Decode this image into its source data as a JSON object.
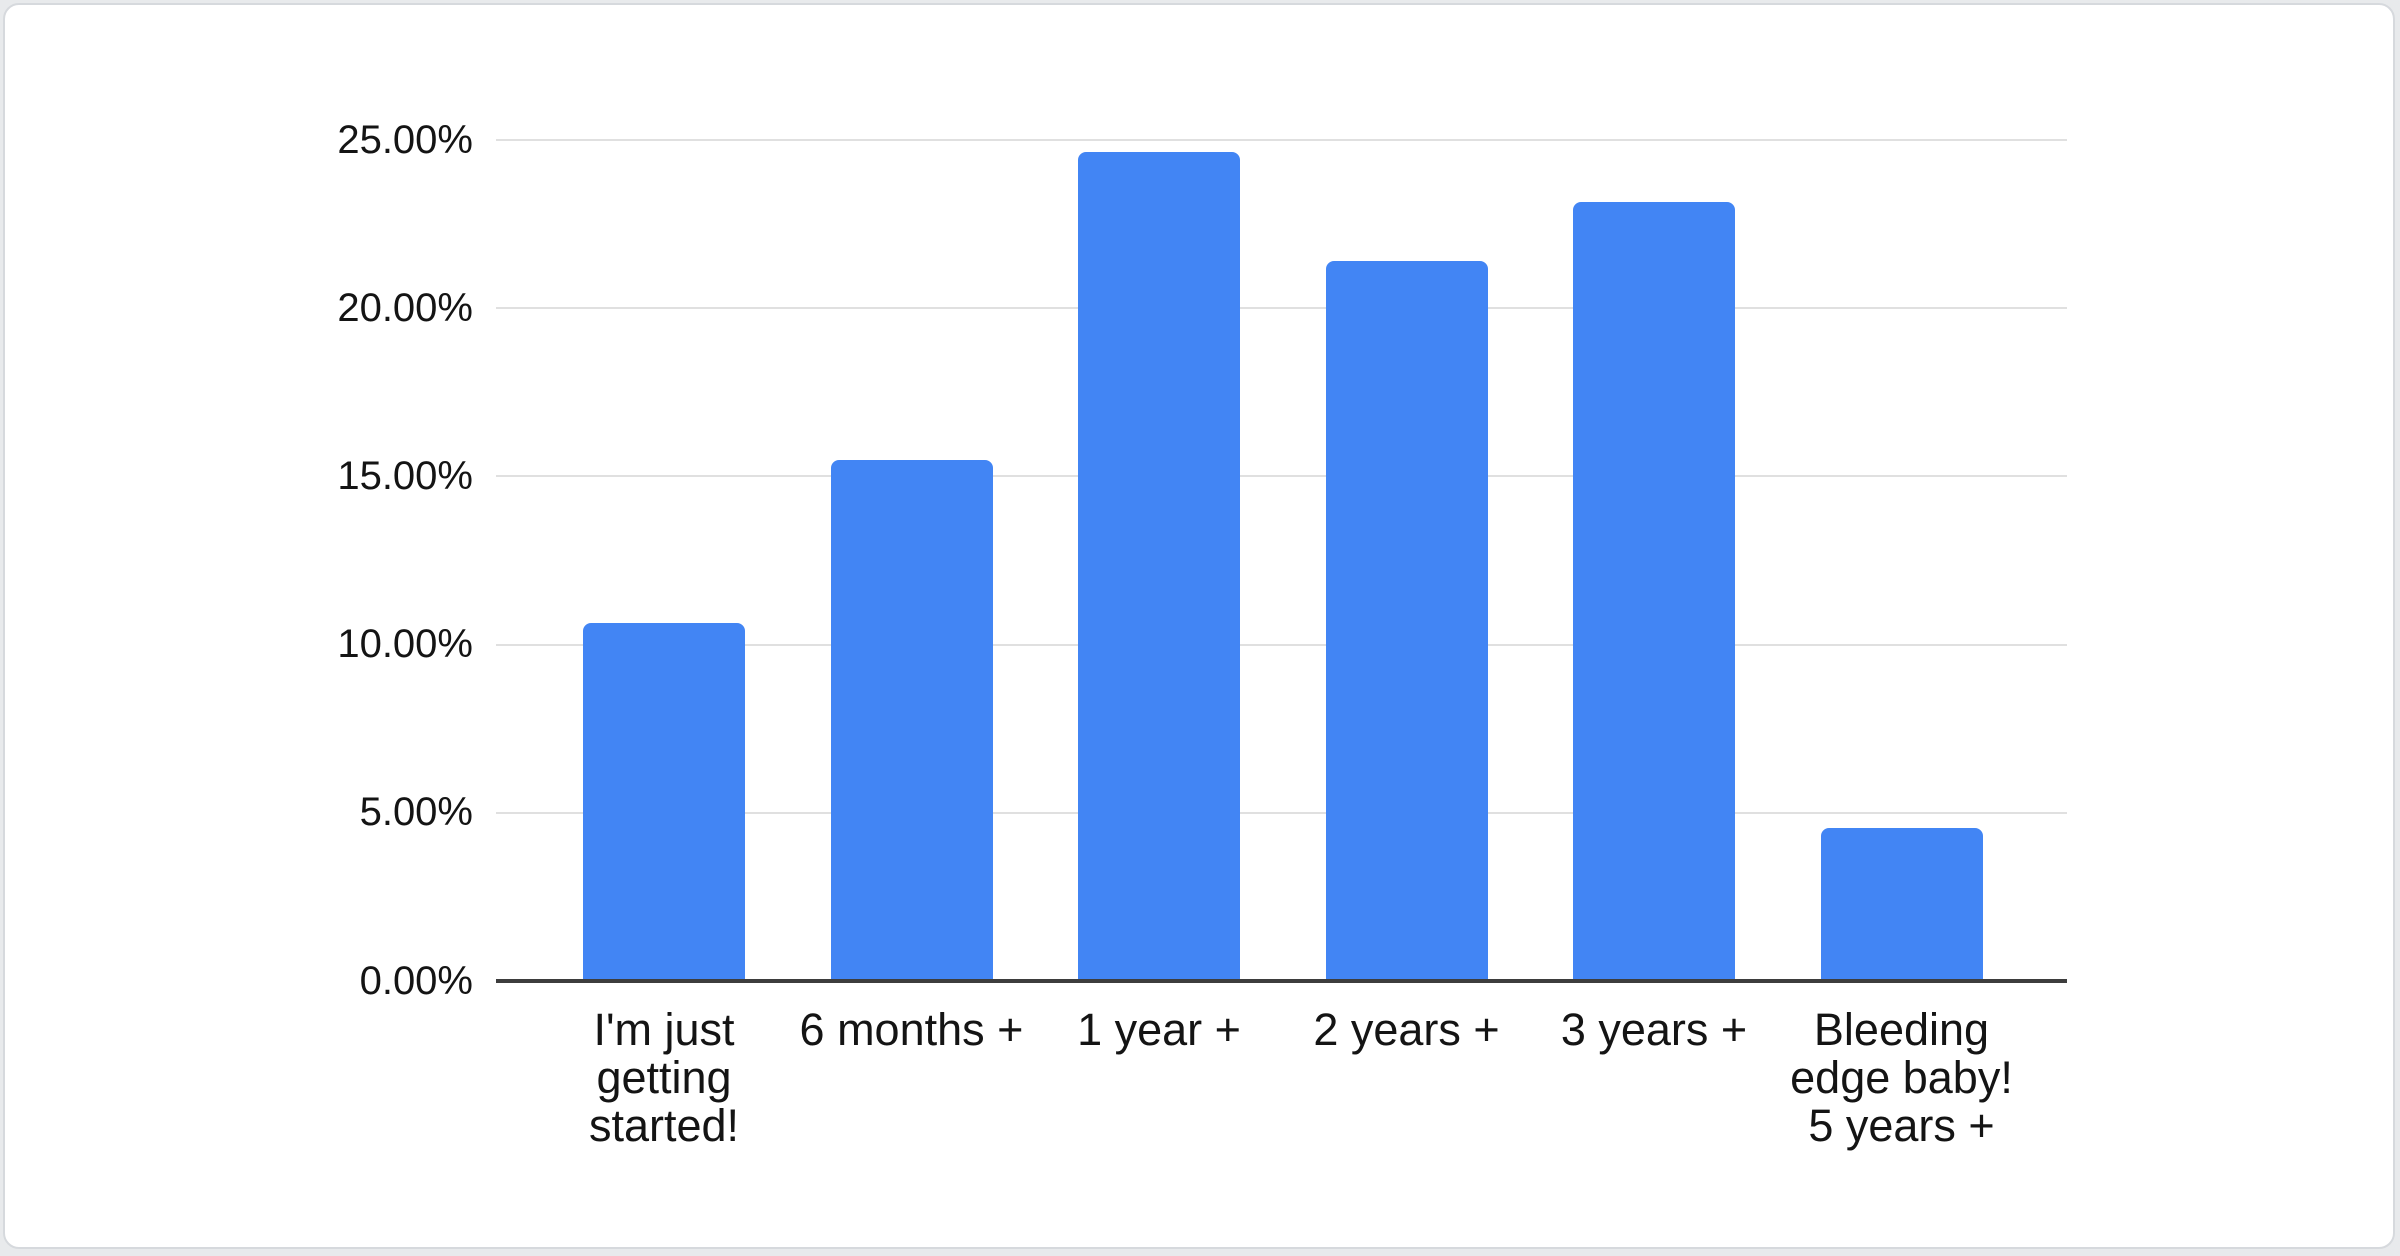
{
  "page": {
    "background_color": "#e8eaec",
    "card_color": "#ffffff",
    "card_border_color": "#d6d9dd"
  },
  "chart_data": {
    "type": "bar",
    "title": "",
    "categories": [
      "I'm just getting started!",
      "6 months +",
      "1 year +",
      "2 years +",
      "3 years +",
      "Bleeding edge baby! 5 years +"
    ],
    "category_lines": [
      [
        "I'm just",
        "getting",
        "started!"
      ],
      [
        "6 months +"
      ],
      [
        "1 year +"
      ],
      [
        "2 years +"
      ],
      [
        "3 years +"
      ],
      [
        "Bleeding",
        "edge baby!",
        "5 years +"
      ]
    ],
    "values": [
      10.65,
      15.5,
      24.65,
      21.4,
      23.15,
      4.55
    ],
    "value_unit": "%",
    "y_ticks": [
      "0.00%",
      "5.00%",
      "10.00%",
      "15.00%",
      "20.00%",
      "25.00%"
    ],
    "y_tick_values": [
      0,
      5,
      10,
      15,
      20,
      25
    ],
    "ylim": [
      0,
      25
    ],
    "grid": true,
    "legend": "none",
    "bar_color": "#4285f4",
    "gridline_color": "#e0e0e0",
    "axis_line_color": "#3d3d3d",
    "label_color": "#141414"
  }
}
